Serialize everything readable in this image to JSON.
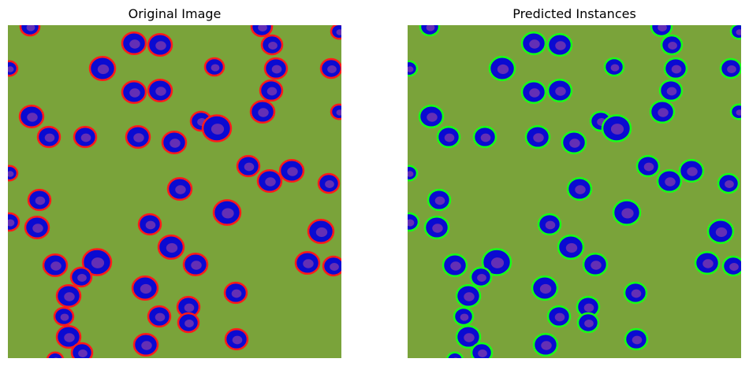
{
  "titles": {
    "left": "Original Image",
    "right": "Predicted Instances"
  },
  "colors": {
    "background": "#7aa33a",
    "cell_fill": "#0a0ad2",
    "cell_core": "#8a3fa8",
    "outline_original": "#ff1a1a",
    "outline_predicted": "#17ff17"
  },
  "cells": [
    [
      28,
      2,
      12
    ],
    [
      160,
      23,
      15
    ],
    [
      193,
      25,
      15
    ],
    [
      322,
      2,
      13
    ],
    [
      335,
      25,
      13
    ],
    [
      420,
      8,
      10
    ],
    [
      120,
      55,
      16
    ],
    [
      262,
      53,
      12
    ],
    [
      340,
      55,
      14
    ],
    [
      410,
      55,
      13
    ],
    [
      2,
      55,
      10
    ],
    [
      160,
      85,
      15
    ],
    [
      193,
      83,
      15
    ],
    [
      334,
      83,
      14
    ],
    [
      30,
      116,
      15
    ],
    [
      323,
      110,
      15
    ],
    [
      420,
      110,
      10
    ],
    [
      52,
      142,
      14
    ],
    [
      98,
      142,
      14
    ],
    [
      165,
      142,
      15
    ],
    [
      211,
      149,
      15
    ],
    [
      245,
      122,
      13
    ],
    [
      265,
      131,
      18
    ],
    [
      2,
      188,
      10
    ],
    [
      305,
      179,
      14
    ],
    [
      332,
      198,
      15
    ],
    [
      360,
      185,
      15
    ],
    [
      218,
      208,
      15
    ],
    [
      407,
      201,
      13
    ],
    [
      40,
      222,
      14
    ],
    [
      278,
      238,
      17
    ],
    [
      2,
      250,
      12
    ],
    [
      37,
      257,
      15
    ],
    [
      180,
      253,
      14
    ],
    [
      397,
      262,
      16
    ],
    [
      207,
      282,
      16
    ],
    [
      60,
      305,
      15
    ],
    [
      113,
      301,
      18
    ],
    [
      238,
      304,
      15
    ],
    [
      380,
      302,
      15
    ],
    [
      413,
      306,
      13
    ],
    [
      93,
      320,
      13
    ],
    [
      174,
      334,
      16
    ],
    [
      77,
      344,
      15
    ],
    [
      289,
      340,
      14
    ],
    [
      229,
      358,
      14
    ],
    [
      192,
      370,
      14
    ],
    [
      229,
      378,
      13
    ],
    [
      71,
      370,
      12
    ],
    [
      77,
      396,
      15
    ],
    [
      175,
      406,
      15
    ],
    [
      290,
      399,
      14
    ],
    [
      94,
      416,
      13
    ],
    [
      60,
      425,
      10
    ]
  ]
}
